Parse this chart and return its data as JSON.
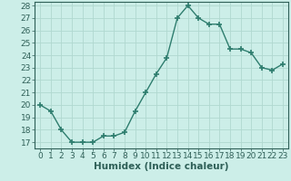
{
  "x_values": [
    0,
    1,
    2,
    3,
    4,
    5,
    6,
    7,
    8,
    9,
    10,
    11,
    12,
    13,
    14,
    15,
    16,
    17,
    18,
    19,
    20,
    21,
    22,
    23
  ],
  "y_values": [
    20,
    19.5,
    18,
    17,
    17,
    17,
    17.5,
    17.5,
    17.8,
    19.5,
    21,
    22.5,
    23.8,
    27,
    28,
    27,
    26.5,
    26.5,
    24.5,
    24.5,
    24.2,
    23,
    22.8,
    23.3
  ],
  "xlabel": "Humidex (Indice chaleur)",
  "ylim_min": 16.5,
  "ylim_max": 28.3,
  "xlim_min": -0.5,
  "xlim_max": 23.5,
  "yticks": [
    17,
    18,
    19,
    20,
    21,
    22,
    23,
    24,
    25,
    26,
    27,
    28
  ],
  "xticks": [
    0,
    1,
    2,
    3,
    4,
    5,
    6,
    7,
    8,
    9,
    10,
    11,
    12,
    13,
    14,
    15,
    16,
    17,
    18,
    19,
    20,
    21,
    22,
    23
  ],
  "line_color": "#2e7d6e",
  "marker": "+",
  "marker_size": 4,
  "marker_linewidth": 1.2,
  "line_width": 1.0,
  "background_color": "#cceee8",
  "grid_color": "#b0d8d0",
  "tick_label_color": "#2e5f57",
  "xlabel_color": "#2e5f57",
  "tick_fontsize": 6.5,
  "xlabel_fontsize": 7.5
}
